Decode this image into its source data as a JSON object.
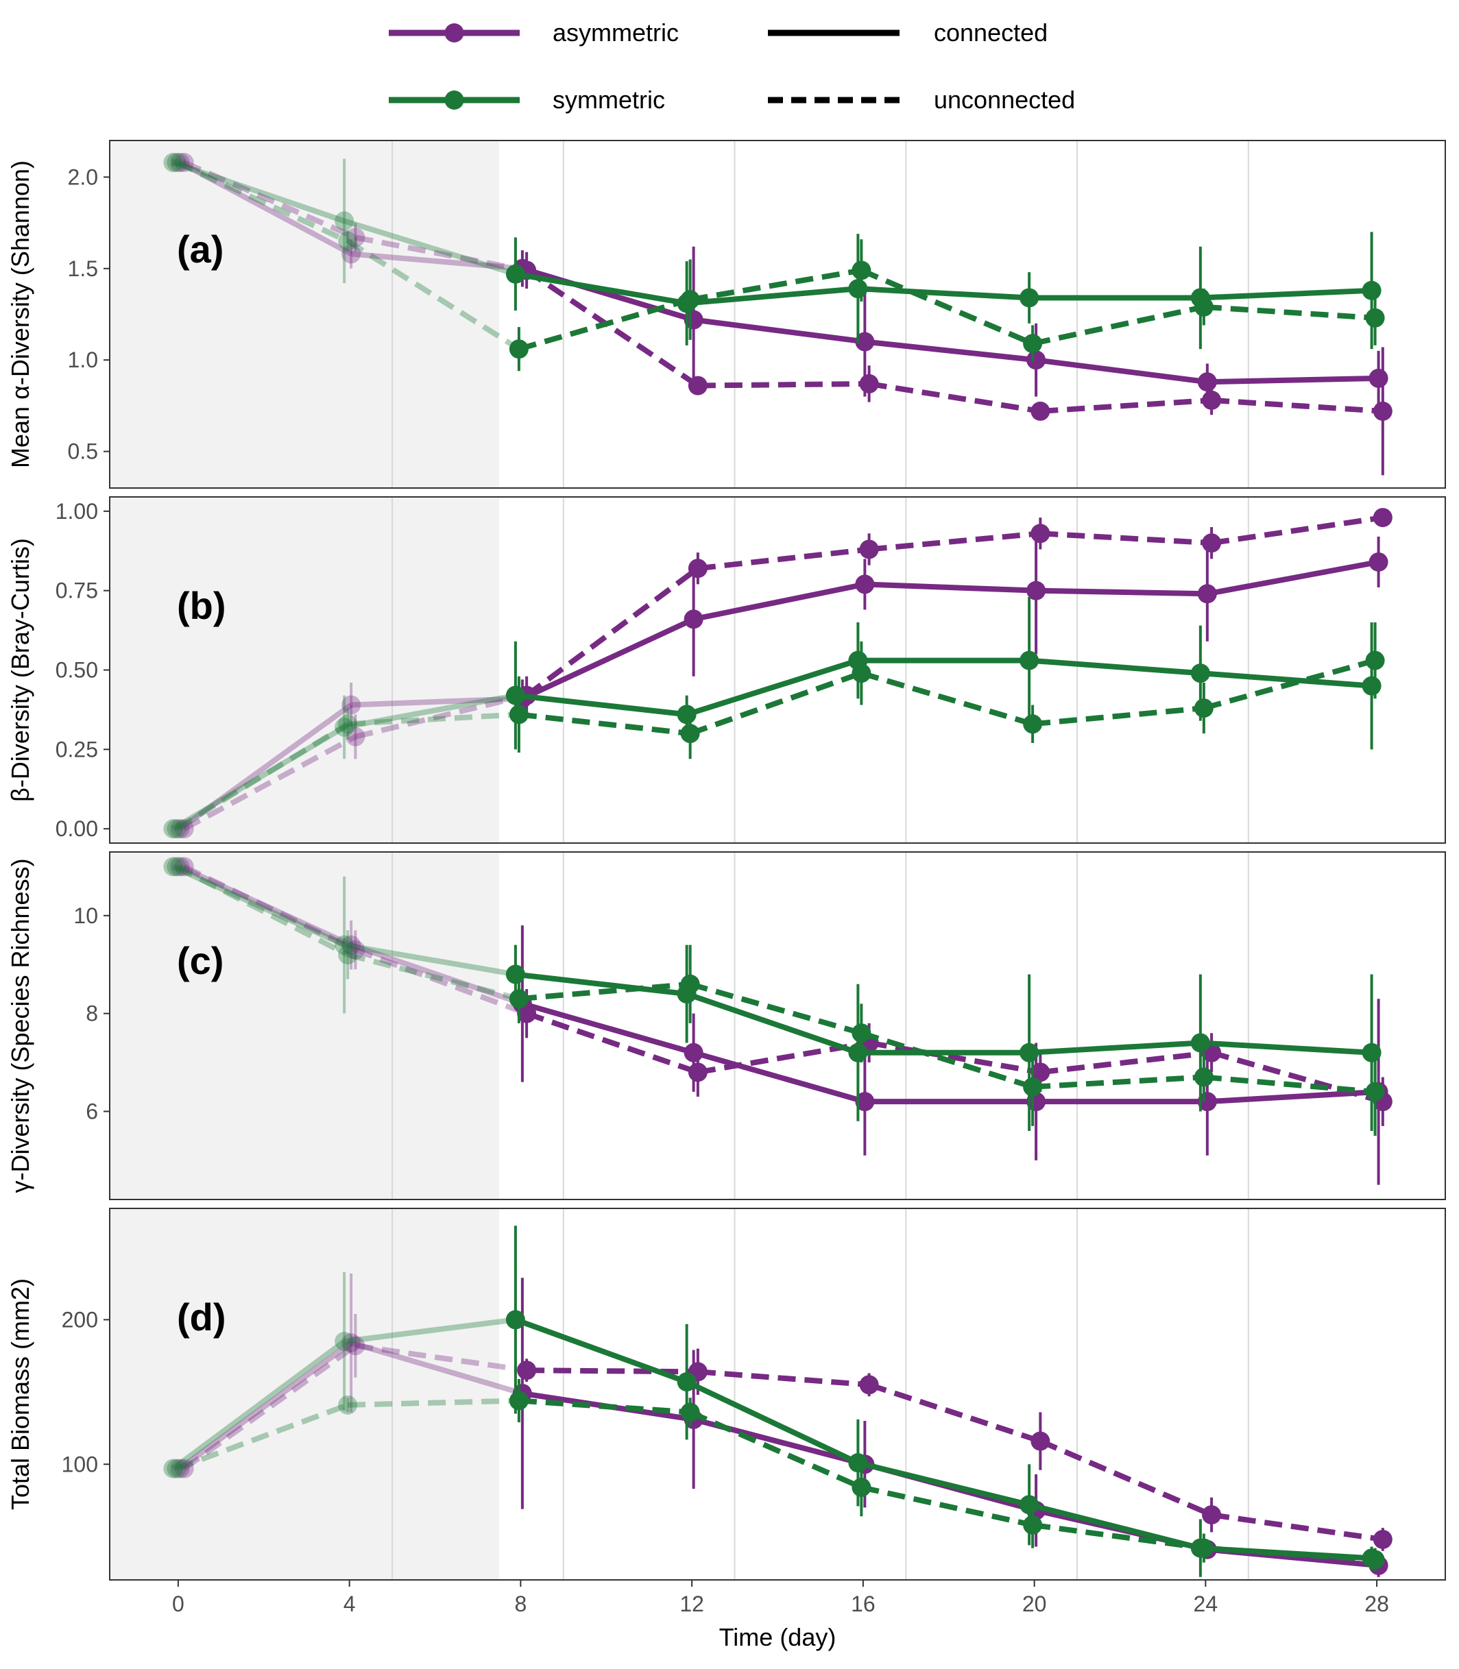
{
  "legend": {
    "items": [
      {
        "label": "asymmetric",
        "color": "#762a83",
        "kind": "color"
      },
      {
        "label": "symmetric",
        "color": "#1b7837",
        "kind": "color"
      },
      {
        "label": "connected",
        "kind": "linetype",
        "dash": false
      },
      {
        "label": "unconnected",
        "kind": "linetype",
        "dash": true
      }
    ]
  },
  "x_axis": {
    "title": "Time (day)",
    "ticks": [
      0,
      4,
      8,
      12,
      16,
      20,
      24,
      28
    ],
    "range": [
      -1.6,
      29.6
    ],
    "shaded_until": 7.5,
    "minor_grid": [
      5,
      9,
      13,
      17,
      21,
      25
    ]
  },
  "colors": {
    "asymmetric": "#762a83",
    "symmetric": "#1b7837",
    "shade": "#f2f2f2",
    "grid": "#d9d9d9",
    "faded_alpha": 0.35
  },
  "chart_data": [
    {
      "type": "line",
      "panel_label": "(a)",
      "ylabel": "Mean α-Diversity (Shannon)",
      "ylim": [
        0.3,
        2.2
      ],
      "yticks": [
        0.5,
        1.0,
        1.5,
        2.0
      ],
      "ytick_labels": [
        "0.5",
        "1.0",
        "1.5",
        "2.0"
      ],
      "series": [
        {
          "name": "asymmetric",
          "linetype": "connected",
          "x": [
            0,
            4,
            8,
            12,
            16,
            20,
            24,
            28
          ],
          "y": [
            2.08,
            1.58,
            1.5,
            1.22,
            1.1,
            1.0,
            0.88,
            0.9
          ],
          "err": [
            0.02,
            0.08,
            0.1,
            0.4,
            0.3,
            0.2,
            0.1,
            0.15
          ]
        },
        {
          "name": "asymmetric",
          "linetype": "unconnected",
          "x": [
            0,
            4,
            8,
            12,
            16,
            20,
            24,
            28
          ],
          "y": [
            2.08,
            1.67,
            1.49,
            0.86,
            0.87,
            0.72,
            0.78,
            0.72
          ],
          "err": [
            0.02,
            0.08,
            0.1,
            0.05,
            0.1,
            0.05,
            0.08,
            0.35
          ]
        },
        {
          "name": "symmetric",
          "linetype": "connected",
          "x": [
            0,
            4,
            8,
            12,
            16,
            20,
            24,
            28
          ],
          "y": [
            2.08,
            1.76,
            1.47,
            1.31,
            1.39,
            1.34,
            1.34,
            1.38
          ],
          "err": [
            0.02,
            0.34,
            0.2,
            0.23,
            0.3,
            0.14,
            0.28,
            0.32
          ]
        },
        {
          "name": "symmetric",
          "linetype": "unconnected",
          "x": [
            0,
            4,
            8,
            12,
            16,
            20,
            24,
            28
          ],
          "y": [
            2.08,
            1.65,
            1.06,
            1.33,
            1.49,
            1.09,
            1.29,
            1.23
          ],
          "err": [
            0.02,
            0.06,
            0.12,
            0.22,
            0.17,
            0.1,
            0.1,
            0.15
          ]
        }
      ]
    },
    {
      "type": "line",
      "panel_label": "(b)",
      "ylabel": "β-Diversity (Bray-Curtis)",
      "ylim": [
        -0.045,
        1.045
      ],
      "yticks": [
        0.0,
        0.25,
        0.5,
        0.75,
        1.0
      ],
      "ytick_labels": [
        "0.00",
        "0.25",
        "0.50",
        "0.75",
        "1.00"
      ],
      "series": [
        {
          "name": "asymmetric",
          "linetype": "connected",
          "x": [
            0,
            4,
            8,
            12,
            16,
            20,
            24,
            28
          ],
          "y": [
            0.0,
            0.39,
            0.41,
            0.66,
            0.77,
            0.75,
            0.74,
            0.84
          ],
          "err": [
            0.0,
            0.07,
            0.06,
            0.18,
            0.08,
            0.2,
            0.15,
            0.08
          ]
        },
        {
          "name": "asymmetric",
          "linetype": "unconnected",
          "x": [
            0,
            4,
            8,
            12,
            16,
            20,
            24,
            28
          ],
          "y": [
            0.0,
            0.29,
            0.42,
            0.82,
            0.88,
            0.93,
            0.9,
            0.98
          ],
          "err": [
            0.0,
            0.07,
            0.06,
            0.05,
            0.05,
            0.05,
            0.05,
            0.02
          ]
        },
        {
          "name": "symmetric",
          "linetype": "connected",
          "x": [
            0,
            4,
            8,
            12,
            16,
            20,
            24,
            28
          ],
          "y": [
            0.0,
            0.32,
            0.42,
            0.36,
            0.53,
            0.53,
            0.49,
            0.45
          ],
          "err": [
            0.0,
            0.1,
            0.17,
            0.06,
            0.12,
            0.2,
            0.15,
            0.2
          ]
        },
        {
          "name": "symmetric",
          "linetype": "unconnected",
          "x": [
            0,
            4,
            8,
            12,
            16,
            20,
            24,
            28
          ],
          "y": [
            0.0,
            0.33,
            0.36,
            0.3,
            0.49,
            0.33,
            0.38,
            0.53
          ],
          "err": [
            0.0,
            0.05,
            0.12,
            0.08,
            0.1,
            0.06,
            0.08,
            0.12
          ]
        }
      ]
    },
    {
      "type": "line",
      "panel_label": "(c)",
      "ylabel": "γ-Diversity (Species Richness)",
      "ylim": [
        4.2,
        11.3
      ],
      "yticks": [
        6,
        8,
        10
      ],
      "ytick_labels": [
        "6",
        "8",
        "10"
      ],
      "series": [
        {
          "name": "asymmetric",
          "linetype": "connected",
          "x": [
            0,
            4,
            8,
            12,
            16,
            20,
            24,
            28
          ],
          "y": [
            11.0,
            9.4,
            8.2,
            7.2,
            6.2,
            6.2,
            6.2,
            6.4
          ],
          "err": [
            0.0,
            0.5,
            1.6,
            0.8,
            1.1,
            1.2,
            1.1,
            1.9
          ]
        },
        {
          "name": "asymmetric",
          "linetype": "unconnected",
          "x": [
            0,
            4,
            8,
            12,
            16,
            20,
            24,
            28
          ],
          "y": [
            11.0,
            9.3,
            8.0,
            6.8,
            7.4,
            6.8,
            7.2,
            6.2
          ],
          "err": [
            0.0,
            0.4,
            0.5,
            0.5,
            0.4,
            0.4,
            0.4,
            0.5
          ]
        },
        {
          "name": "symmetric",
          "linetype": "connected",
          "x": [
            0,
            4,
            8,
            12,
            16,
            20,
            24,
            28
          ],
          "y": [
            11.0,
            9.4,
            8.8,
            8.4,
            7.2,
            7.2,
            7.4,
            7.2
          ],
          "err": [
            0.0,
            1.4,
            0.6,
            1.0,
            1.4,
            1.6,
            1.4,
            1.6
          ]
        },
        {
          "name": "symmetric",
          "linetype": "unconnected",
          "x": [
            0,
            4,
            8,
            12,
            16,
            20,
            24,
            28
          ],
          "y": [
            11.0,
            9.2,
            8.3,
            8.6,
            7.6,
            6.5,
            6.7,
            6.4
          ],
          "err": [
            0.0,
            0.5,
            0.5,
            0.8,
            0.6,
            0.8,
            0.5,
            0.9
          ]
        }
      ]
    },
    {
      "type": "line",
      "panel_label": "(d)",
      "ylabel": "Total Biomass (mm2)",
      "ylim": [
        20,
        277
      ],
      "yticks": [
        100,
        200
      ],
      "ytick_labels": [
        "100",
        "200"
      ],
      "series": [
        {
          "name": "asymmetric",
          "linetype": "connected",
          "x": [
            0,
            4,
            8,
            12,
            16,
            20,
            24,
            28
          ],
          "y": [
            97,
            184,
            149,
            131,
            100,
            68,
            41,
            30
          ],
          "err": [
            0,
            48,
            80,
            48,
            30,
            25,
            5,
            8
          ]
        },
        {
          "name": "asymmetric",
          "linetype": "unconnected",
          "x": [
            0,
            4,
            8,
            12,
            16,
            20,
            24,
            28
          ],
          "y": [
            97,
            182,
            165,
            164,
            155,
            116,
            65,
            48
          ],
          "err": [
            0,
            22,
            8,
            16,
            8,
            20,
            12,
            8
          ]
        },
        {
          "name": "symmetric",
          "linetype": "connected",
          "x": [
            0,
            4,
            8,
            12,
            16,
            20,
            24,
            28
          ],
          "y": [
            97,
            185,
            200,
            157,
            101,
            72,
            42,
            35
          ],
          "err": [
            0,
            48,
            65,
            40,
            30,
            28,
            20,
            8
          ]
        },
        {
          "name": "symmetric",
          "linetype": "unconnected",
          "x": [
            0,
            4,
            8,
            12,
            16,
            20,
            24,
            28
          ],
          "y": [
            97,
            141,
            144,
            136,
            84,
            58,
            42,
            34
          ],
          "err": [
            0,
            5,
            15,
            10,
            20,
            16,
            10,
            8
          ]
        }
      ]
    }
  ]
}
